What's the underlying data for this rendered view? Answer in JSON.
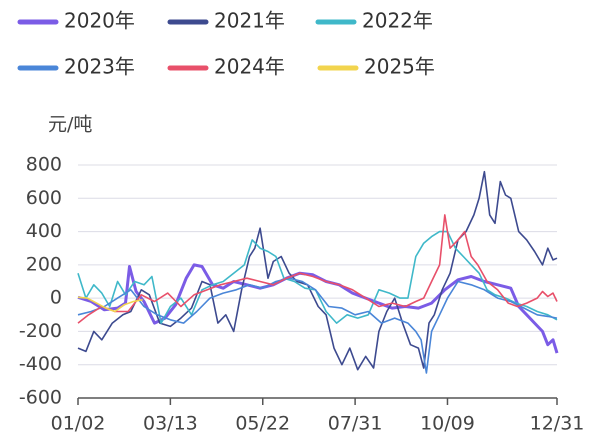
{
  "chart_data": {
    "type": "line",
    "y_label": "元/吨",
    "xlim": [
      2,
      365
    ],
    "xticks": [
      {
        "value": 2,
        "label": "01/02"
      },
      {
        "value": 72,
        "label": "03/13"
      },
      {
        "value": 142,
        "label": "05/22"
      },
      {
        "value": 212,
        "label": "07/31"
      },
      {
        "value": 282,
        "label": "10/09"
      },
      {
        "value": 365,
        "label": "12/31"
      }
    ],
    "ylim": [
      -600,
      800
    ],
    "yticks": [
      -600,
      -400,
      -200,
      0,
      200,
      400,
      600,
      800
    ],
    "grid": true,
    "series": [
      {
        "name": "2020年",
        "color": "#7b5ce6",
        "x": [
          2,
          12,
          22,
          32,
          38,
          41,
          46,
          52,
          60,
          68,
          76,
          84,
          90,
          96,
          104,
          112,
          120,
          130,
          140,
          150,
          160,
          170,
          180,
          190,
          200,
          210,
          220,
          230,
          240,
          250,
          260,
          270,
          280,
          290,
          300,
          310,
          320,
          330,
          336,
          342,
          348,
          354,
          358,
          362,
          365
        ],
        "values": [
          5,
          -20,
          -70,
          -60,
          -30,
          190,
          40,
          -20,
          -150,
          -120,
          -40,
          120,
          200,
          190,
          80,
          60,
          100,
          80,
          60,
          80,
          120,
          150,
          140,
          100,
          80,
          30,
          0,
          -30,
          -60,
          -50,
          -60,
          -30,
          50,
          110,
          130,
          100,
          80,
          60,
          -50,
          -100,
          -150,
          -200,
          -280,
          -250,
          -330
        ]
      },
      {
        "name": "2021年",
        "color": "#3d4a8f",
        "x": [
          2,
          8,
          14,
          20,
          28,
          36,
          42,
          50,
          56,
          64,
          72,
          80,
          88,
          96,
          102,
          108,
          114,
          120,
          126,
          132,
          136,
          140,
          146,
          150,
          156,
          162,
          168,
          176,
          184,
          190,
          196,
          202,
          208,
          214,
          220,
          226,
          230,
          236,
          242,
          248,
          254,
          260,
          264,
          268,
          272,
          278,
          284,
          290,
          296,
          302,
          306,
          310,
          314,
          318,
          322,
          326,
          330,
          336,
          342,
          348,
          354,
          358,
          362,
          365
        ],
        "values": [
          -300,
          -320,
          -200,
          -250,
          -150,
          -100,
          -80,
          50,
          20,
          -150,
          -170,
          -120,
          -60,
          100,
          80,
          -150,
          -100,
          -200,
          50,
          250,
          300,
          420,
          120,
          220,
          250,
          150,
          100,
          80,
          -50,
          -100,
          -300,
          -400,
          -300,
          -430,
          -350,
          -420,
          -200,
          -80,
          0,
          -150,
          -280,
          -300,
          -420,
          -150,
          -100,
          50,
          150,
          350,
          400,
          500,
          600,
          760,
          500,
          450,
          700,
          620,
          600,
          400,
          350,
          280,
          200,
          300,
          230,
          240
        ]
      },
      {
        "name": "2022年",
        "color": "#3fb8c9",
        "x": [
          2,
          8,
          14,
          20,
          26,
          32,
          38,
          45,
          52,
          58,
          65,
          72,
          80,
          88,
          96,
          104,
          112,
          120,
          128,
          134,
          140,
          146,
          152,
          158,
          166,
          174,
          182,
          190,
          198,
          206,
          214,
          222,
          230,
          238,
          246,
          252,
          258,
          264,
          270,
          276,
          282,
          288,
          294,
          300,
          306,
          312,
          318,
          326,
          334,
          342,
          350,
          358,
          365
        ],
        "values": [
          150,
          0,
          80,
          30,
          -50,
          100,
          20,
          100,
          80,
          130,
          -150,
          -50,
          0,
          -100,
          50,
          80,
          100,
          150,
          200,
          350,
          300,
          280,
          250,
          120,
          100,
          60,
          50,
          -80,
          -150,
          -100,
          -120,
          -100,
          50,
          30,
          0,
          0,
          250,
          330,
          370,
          400,
          400,
          300,
          250,
          200,
          150,
          50,
          20,
          0,
          -30,
          -50,
          -80,
          -100,
          -130
        ]
      },
      {
        "name": "2023年",
        "color": "#4a86d8",
        "x": [
          2,
          12,
          22,
          32,
          42,
          52,
          62,
          72,
          82,
          92,
          102,
          112,
          122,
          132,
          142,
          152,
          162,
          172,
          182,
          192,
          202,
          212,
          222,
          232,
          242,
          252,
          258,
          262,
          266,
          270,
          276,
          282,
          290,
          300,
          310,
          320,
          330,
          340,
          350,
          358,
          365
        ],
        "values": [
          -100,
          -80,
          -50,
          0,
          50,
          -50,
          -100,
          -130,
          -150,
          -80,
          0,
          30,
          50,
          80,
          60,
          100,
          120,
          100,
          50,
          -50,
          -60,
          -100,
          -80,
          -150,
          -120,
          -150,
          -200,
          -250,
          -450,
          -200,
          -100,
          0,
          100,
          80,
          50,
          0,
          -20,
          -60,
          -100,
          -110,
          -120
        ]
      },
      {
        "name": "2024年",
        "color": "#e8506a",
        "x": [
          2,
          10,
          20,
          30,
          40,
          50,
          60,
          70,
          80,
          90,
          100,
          110,
          120,
          130,
          140,
          150,
          160,
          170,
          180,
          190,
          200,
          210,
          220,
          230,
          240,
          250,
          258,
          264,
          270,
          276,
          280,
          284,
          290,
          295,
          300,
          305,
          312,
          320,
          328,
          335,
          342,
          350,
          354,
          358,
          362,
          365
        ],
        "values": [
          -150,
          -100,
          -50,
          -80,
          -80,
          20,
          -20,
          30,
          -50,
          20,
          50,
          80,
          100,
          120,
          100,
          80,
          120,
          150,
          130,
          100,
          80,
          50,
          0,
          -50,
          -30,
          -50,
          -20,
          0,
          100,
          200,
          500,
          300,
          350,
          400,
          250,
          200,
          100,
          50,
          -30,
          -50,
          -30,
          0,
          40,
          10,
          30,
          -20
        ]
      },
      {
        "name": "2025年",
        "color": "#f2d44e",
        "x": [
          2,
          9,
          16,
          23,
          30,
          37,
          44,
          51
        ],
        "values": [
          5,
          0,
          -30,
          -60,
          -80,
          -40,
          -20,
          -10
        ]
      }
    ]
  }
}
